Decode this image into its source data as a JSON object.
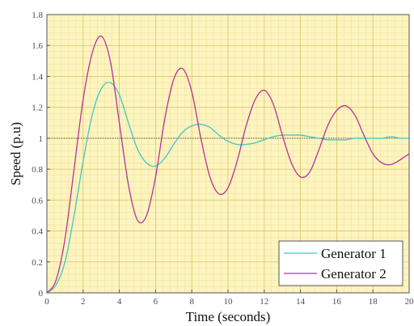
{
  "chart_data": {
    "type": "line",
    "xlabel": "Time (seconds)",
    "ylabel": "Speed (p.u)",
    "xlim": [
      0,
      20
    ],
    "ylim": [
      0,
      1.8
    ],
    "xticks": [
      0,
      2,
      4,
      6,
      8,
      10,
      12,
      14,
      16,
      18,
      20
    ],
    "yticks": [
      0,
      0.2,
      0.4,
      0.6,
      0.8,
      1,
      1.2,
      1.4,
      1.6,
      1.8
    ],
    "xtick_labels": [
      "0",
      "2",
      "4",
      "6",
      "8",
      "10",
      "12",
      "14",
      "16",
      "18",
      "20"
    ],
    "ytick_labels": [
      "0",
      "0.2",
      "0.4",
      "0.6",
      "0.8",
      "1",
      "1.2",
      "1.4",
      "1.6",
      "1.8"
    ],
    "grid": true,
    "minor_grid": true,
    "reference_line": 1,
    "legend_position": "bottom-right",
    "background_color": "#fdf4bf",
    "grid_color": "#e6d98a",
    "series": [
      {
        "name": "Generator 1",
        "color": "#3fc8c8",
        "x": [
          0,
          0.5,
          1,
          1.5,
          2,
          2.5,
          3,
          3.5,
          4,
          4.5,
          5,
          5.5,
          6,
          6.5,
          7,
          7.5,
          8,
          8.5,
          9,
          9.5,
          10,
          10.5,
          11,
          11.5,
          12,
          12.5,
          13,
          13.5,
          14,
          14.5,
          15,
          15.5,
          16,
          16.5,
          17,
          17.5,
          18,
          18.5,
          19,
          19.5,
          20
        ],
        "values": [
          0,
          0.05,
          0.2,
          0.5,
          0.85,
          1.15,
          1.32,
          1.36,
          1.28,
          1.1,
          0.93,
          0.84,
          0.82,
          0.87,
          0.96,
          1.04,
          1.08,
          1.09,
          1.07,
          1.02,
          0.98,
          0.96,
          0.96,
          0.97,
          0.99,
          1.01,
          1.02,
          1.02,
          1.02,
          1.01,
          1.0,
          0.99,
          0.99,
          0.99,
          1.0,
          1.0,
          1.0,
          1.0,
          1.01,
          1.0,
          1.0
        ]
      },
      {
        "name": "Generator 2",
        "color": "#b8329a",
        "x": [
          0,
          0.5,
          1,
          1.5,
          2,
          2.5,
          3,
          3.5,
          4,
          4.5,
          5,
          5.5,
          6,
          6.5,
          7,
          7.5,
          8,
          8.5,
          9,
          9.5,
          10,
          10.5,
          11,
          11.5,
          12,
          12.5,
          13,
          13.5,
          14,
          14.5,
          15,
          15.5,
          16,
          16.5,
          17,
          17.5,
          18,
          18.5,
          19,
          19.5,
          20
        ],
        "values": [
          0,
          0.08,
          0.35,
          0.8,
          1.25,
          1.55,
          1.66,
          1.5,
          1.1,
          0.7,
          0.47,
          0.5,
          0.75,
          1.12,
          1.38,
          1.45,
          1.3,
          1.0,
          0.75,
          0.64,
          0.68,
          0.85,
          1.08,
          1.25,
          1.31,
          1.22,
          1.02,
          0.84,
          0.75,
          0.78,
          0.92,
          1.08,
          1.18,
          1.21,
          1.15,
          1.02,
          0.9,
          0.84,
          0.83,
          0.86,
          0.9
        ]
      }
    ]
  }
}
